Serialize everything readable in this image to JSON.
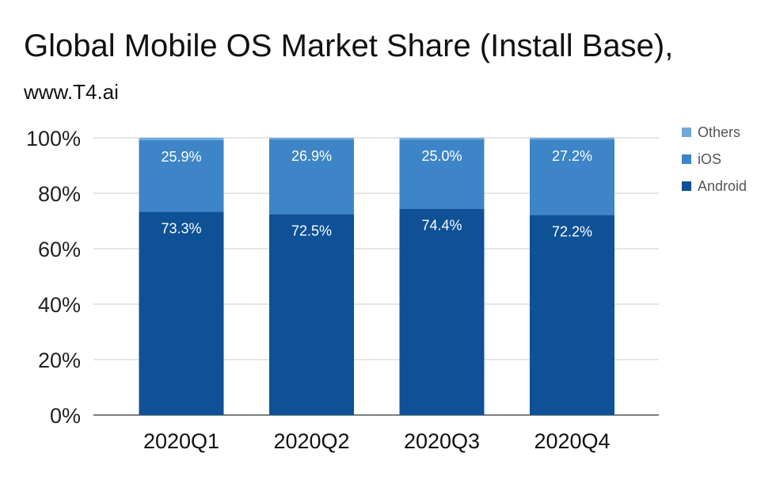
{
  "chart_data": {
    "type": "bar",
    "stacked": true,
    "title": "Global Mobile OS Market Share (Install Base),",
    "subtitle": "www.T4.ai",
    "categories": [
      "2020Q1",
      "2020Q2",
      "2020Q3",
      "2020Q4"
    ],
    "series": [
      {
        "name": "Android",
        "color": "#0e5196",
        "values": [
          73.3,
          72.5,
          74.4,
          72.2
        ],
        "labels": [
          "73.3%",
          "72.5%",
          "74.4%",
          "72.2%"
        ]
      },
      {
        "name": "iOS",
        "color": "#3d85c6",
        "values": [
          25.9,
          26.9,
          25.0,
          27.2
        ],
        "labels": [
          "25.9%",
          "26.9%",
          "25.0%",
          "27.2%"
        ]
      },
      {
        "name": "Others",
        "color": "#6fa8dc",
        "values": [
          0.8,
          0.6,
          0.6,
          0.6
        ]
      }
    ],
    "legend_order": [
      "Others",
      "iOS",
      "Android"
    ],
    "ylim": [
      0,
      100
    ],
    "yticks": [
      0,
      20,
      40,
      60,
      80,
      100
    ],
    "ytick_labels": [
      "0%",
      "20%",
      "40%",
      "60%",
      "80%",
      "100%"
    ],
    "xlabel": "",
    "ylabel": "",
    "legend_position": "right",
    "grid": true
  }
}
